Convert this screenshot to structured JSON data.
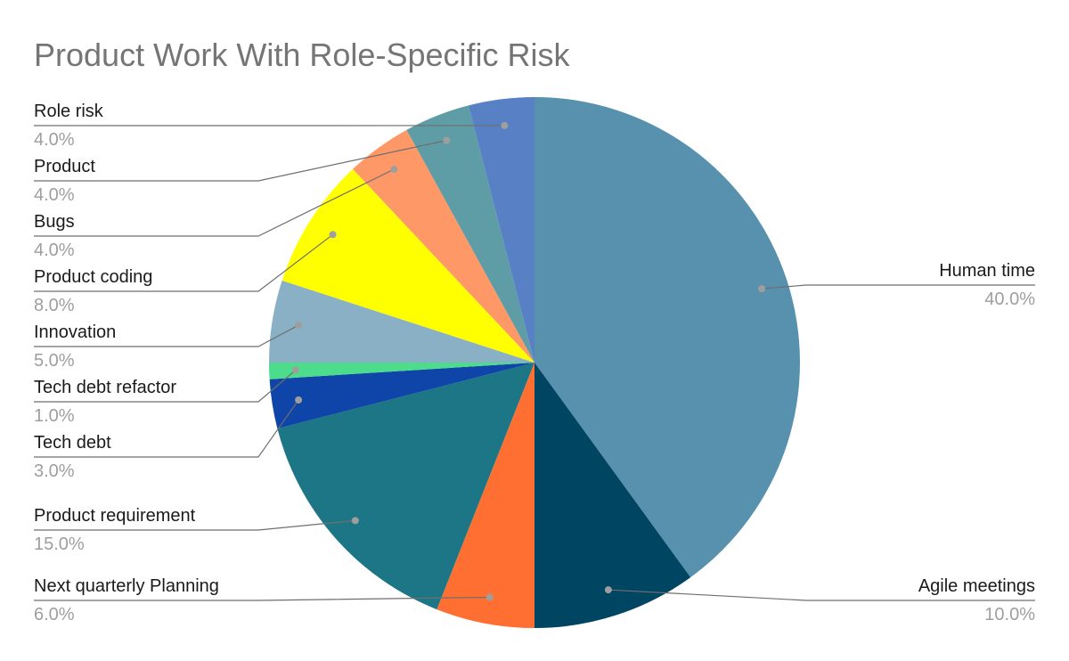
{
  "chart_data": {
    "type": "pie",
    "title": "Product Work With Role-Specific Risk",
    "slices": [
      {
        "label": "Human time",
        "value": 40.0,
        "value_label": "40.0%",
        "color": "#5891AD"
      },
      {
        "label": "Agile meetings",
        "value": 10.0,
        "value_label": "10.0%",
        "color": "#004561"
      },
      {
        "label": "Next quarterly Planning",
        "value": 6.0,
        "value_label": "6.0%",
        "color": "#FF6F31"
      },
      {
        "label": "Product requirement",
        "value": 15.0,
        "value_label": "15.0%",
        "color": "#1C7685"
      },
      {
        "label": "Tech debt",
        "value": 3.0,
        "value_label": "3.0%",
        "color": "#0F45A8"
      },
      {
        "label": "Tech debt refactor",
        "value": 1.0,
        "value_label": "1.0%",
        "color": "#4CDC8B"
      },
      {
        "label": "Innovation",
        "value": 5.0,
        "value_label": "5.0%",
        "color": "#89B0C5"
      },
      {
        "label": "Product coding",
        "value": 8.0,
        "value_label": "8.0%",
        "color": "#FFFF00"
      },
      {
        "label": "Bugs",
        "value": 4.0,
        "value_label": "4.0%",
        "color": "#FF9867"
      },
      {
        "label": "Product",
        "value": 4.0,
        "value_label": "4.0%",
        "color": "#5F9DA6"
      },
      {
        "label": "Role risk",
        "value": 4.0,
        "value_label": "4.0%",
        "color": "#5881C5"
      }
    ],
    "start_angle": "12 o'clock",
    "direction": "clockwise",
    "labels": "outside with leader lines",
    "legend": "none"
  }
}
